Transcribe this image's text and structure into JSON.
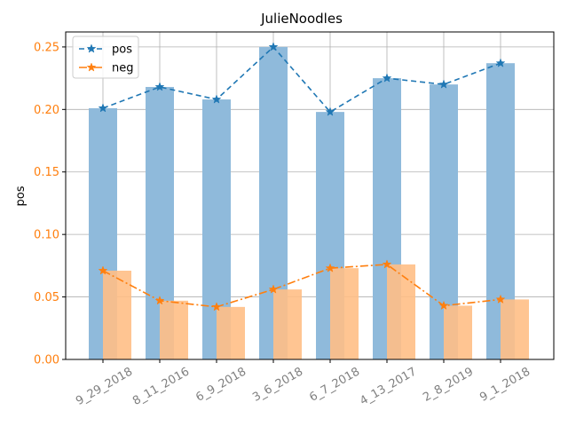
{
  "chart_data": {
    "type": "bar",
    "title": "JulieNoodles",
    "xlabel": "",
    "ylabel": "pos",
    "categories": [
      "9_29_2018",
      "8_11_2016",
      "6_9_2018",
      "3_6_2018",
      "6_7_2018",
      "4_13_2017",
      "2_8_2019",
      "9_1_2018"
    ],
    "ylim": [
      0,
      0.262
    ],
    "yticks": [
      "0.00",
      "0.05",
      "0.10",
      "0.15",
      "0.20",
      "0.25"
    ],
    "grid": true,
    "legend_placement": "top-left",
    "series": [
      {
        "name": "pos",
        "kind": "bar+line",
        "line_style": "dashed",
        "marker": "star",
        "color": "#1f77b4",
        "bar_color": "#8fbadb",
        "values": [
          0.201,
          0.218,
          0.208,
          0.25,
          0.198,
          0.225,
          0.22,
          0.237
        ]
      },
      {
        "name": "neg",
        "kind": "bar+line",
        "line_style": "dash-dot",
        "marker": "star",
        "color": "#ff7f0e",
        "bar_color": "#ffbf86",
        "values": [
          0.071,
          0.047,
          0.042,
          0.056,
          0.073,
          0.076,
          0.043,
          0.048
        ]
      }
    ],
    "tick_label_colors": {
      "x": "#808080",
      "y": "#ff7f0e"
    }
  }
}
